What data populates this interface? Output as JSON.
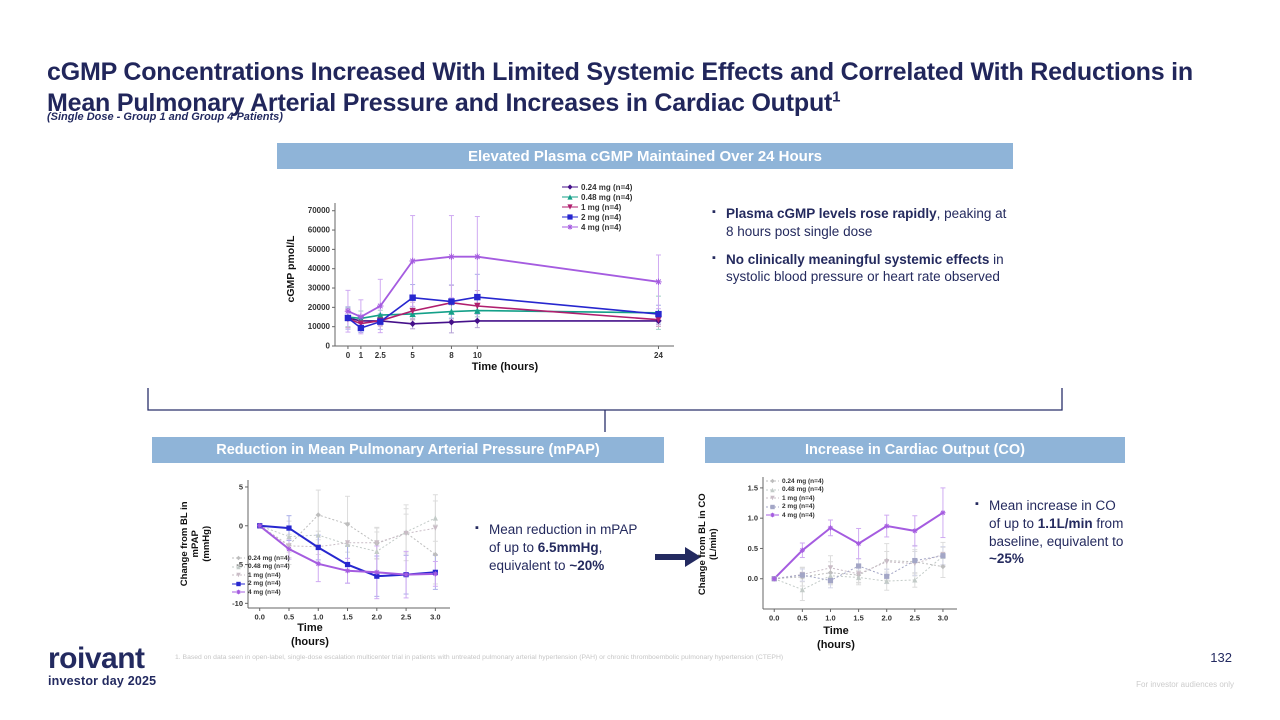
{
  "slide": {
    "title": "cGMP Concentrations Increased With Limited Systemic Effects and Correlated With Reductions in Mean Pulmonary Arterial Pressure and Increases in Cardiac Output",
    "title_superscript": "1",
    "subtitle": "(Single Dose - Group 1 and Group 4 Patients)",
    "page_number": "132",
    "audience_note": "For investor audiences only",
    "footnote": "1. Based on data seen in open-label, single-dose escalation multicenter trial in patients with untreated pulmonary arterial hypertension (PAH) or chronic thromboembolic pulmonary hypertension (CTEPH)",
    "logo": {
      "brand": "roivant",
      "event": "investor day 2025"
    }
  },
  "colors": {
    "navy": "#232a60",
    "header_bar_blue": "#8fb4d8",
    "dose_024": "#45108a",
    "dose_048": "#14a089",
    "dose_1": "#b01e6e",
    "dose_2": "#2727cf",
    "dose_4": "#a55ce0",
    "muted_gray": "#bdbdbd"
  },
  "sections": {
    "cgmp": {
      "header": "Elevated Plasma cGMP Maintained Over 24 Hours",
      "bullets": [
        {
          "parts": [
            {
              "t": "Plasma cGMP levels rose rapidly",
              "b": true
            },
            {
              "t": ", peaking at 8 hours post single dose",
              "b": false
            }
          ]
        },
        {
          "parts": [
            {
              "t": "No clinically meaningful systemic effects",
              "b": true
            },
            {
              "t": " in systolic blood pressure or heart rate observed",
              "b": false
            }
          ]
        }
      ]
    },
    "mpap": {
      "header": "Reduction in Mean Pulmonary Arterial Pressure (mPAP)",
      "bullets": [
        {
          "parts": [
            {
              "t": "Mean reduction in mPAP of up to ",
              "b": false
            },
            {
              "t": "6.5mmHg",
              "b": true
            },
            {
              "t": ", equivalent to ",
              "b": false
            },
            {
              "t": "~20%",
              "b": true
            }
          ]
        }
      ]
    },
    "co": {
      "header": "Increase in Cardiac Output (CO)",
      "bullets": [
        {
          "parts": [
            {
              "t": "Mean increase in CO of up to ",
              "b": false
            },
            {
              "t": "1.1L/min",
              "b": true
            },
            {
              "t": " from baseline, equivalent to ",
              "b": false
            },
            {
              "t": "~25%",
              "b": true
            }
          ]
        }
      ]
    }
  },
  "chart_data": [
    {
      "id": "cgmp",
      "type": "line",
      "title": "Elevated Plasma cGMP Maintained Over 24 Hours",
      "xlabel": "Time (hours)",
      "ylabel": "cGMP pmol/L",
      "x": [
        0,
        1,
        2.5,
        5,
        8,
        10,
        24
      ],
      "xlim": [
        -1,
        25.2
      ],
      "ylim": [
        0,
        74000
      ],
      "xticks": [
        0,
        1,
        2.5,
        5,
        8,
        10,
        24
      ],
      "xticklabels": [
        "0",
        "1",
        "2.5",
        "5",
        "8",
        "10",
        "24"
      ],
      "yticks": [
        0,
        10000,
        20000,
        30000,
        40000,
        50000,
        60000,
        70000
      ],
      "yticklabels": [
        "0",
        "10000",
        "20000",
        "30000",
        "40000",
        "50000",
        "60000",
        "70000"
      ],
      "grid": false,
      "legend_position": "above-plot-right",
      "series": [
        {
          "name": "0.24 mg (n=4)",
          "color": "#45108a",
          "ec": "#b6a3d6",
          "marker": "diamond",
          "width": 1.6,
          "values": [
            14500,
            13000,
            13000,
            11500,
            12300,
            13000,
            13000
          ],
          "err": [
            5000,
            2500,
            2200,
            2600,
            5500,
            3500,
            2000
          ]
        },
        {
          "name": "0.48 mg (n=4)",
          "color": "#14a089",
          "ec": "#9fd0c5",
          "marker": "triangle",
          "width": 1.6,
          "values": [
            15000,
            14300,
            16000,
            16600,
            17800,
            18300,
            17200
          ],
          "err": [
            5000,
            3800,
            2500,
            3000,
            3500,
            3200,
            8600
          ]
        },
        {
          "name": "1 mg (n=4)",
          "color": "#b01e6e",
          "ec": "#d4a9c6",
          "marker": "tridown",
          "width": 1.6,
          "values": [
            14000,
            11600,
            13100,
            18100,
            22400,
            20700,
            13600
          ],
          "err": [
            4500,
            2800,
            2800,
            4600,
            9000,
            8000,
            3500
          ]
        },
        {
          "name": "2 mg (n=4)",
          "color": "#2727cf",
          "ec": "#a9aee8",
          "marker": "square",
          "width": 1.6,
          "values": [
            14500,
            9300,
            12600,
            25000,
            23000,
            25300,
            16500
          ],
          "err": [
            5800,
            2300,
            4000,
            6800,
            8600,
            11800,
            4600
          ]
        },
        {
          "name": "4 mg (n=4)",
          "color": "#a55ce0",
          "ec": "#cfaaf2",
          "marker": "star",
          "width": 1.8,
          "values": [
            18000,
            15100,
            20700,
            44000,
            46200,
            46200,
            33200
          ],
          "err": [
            10800,
            8800,
            13800,
            23500,
            21300,
            20800,
            13900
          ]
        }
      ]
    },
    {
      "id": "mpap",
      "type": "line",
      "title": "Reduction in Mean Pulmonary Arterial Pressure (mPAP)",
      "xlabel": "Time\n(hours)",
      "ylabel": "Change from BL in\nmPAP\n(mmHg)",
      "x": [
        0,
        0.5,
        1,
        1.5,
        2,
        2.5,
        3
      ],
      "xlim": [
        -0.2,
        3.25
      ],
      "ylim": [
        -10.6,
        5.9
      ],
      "xticks": [
        0,
        0.5,
        1,
        1.5,
        2,
        2.5,
        3
      ],
      "xticklabels": [
        "0.0",
        "0.5",
        "1.0",
        "1.5",
        "2.0",
        "2.5",
        "3.0"
      ],
      "yticks": [
        5,
        0,
        -5,
        -10
      ],
      "yticklabels": [
        "5",
        "0",
        "-5",
        "-10"
      ],
      "grid": false,
      "legend_position": "inside-bottom-left",
      "series": [
        {
          "name": "0.24 mg (n=4)",
          "color": "#bdbdbd",
          "ec": "#dcdcdc",
          "marker": "diamond",
          "width": 1,
          "dash": "2,2",
          "values": [
            0,
            -2.5,
            1.4,
            0.2,
            -2.3,
            -0.9,
            -3.7
          ],
          "err": [
            0.3,
            2.5,
            3.2,
            3.6,
            2.0,
            3.6,
            3.8
          ]
        },
        {
          "name": "0.48 mg (n=4)",
          "color": "#c3cbc8",
          "ec": "#dcdcdc",
          "marker": "triangle",
          "width": 1,
          "dash": "2,2",
          "values": [
            0,
            -1.4,
            -1.2,
            -2.4,
            -3.3,
            -0.8,
            1.0
          ],
          "err": [
            0.3,
            2.0,
            2.5,
            2.8,
            2.5,
            3.0,
            3.0
          ]
        },
        {
          "name": "1 mg (n=4)",
          "color": "#c9bcc6",
          "ec": "#dcdcdc",
          "marker": "tridown",
          "width": 1,
          "dash": "2,2",
          "values": [
            0,
            -2.6,
            -2.7,
            -2.2,
            -2.2,
            -1.0,
            -0.3
          ],
          "err": [
            0.3,
            1.5,
            2.0,
            2.5,
            2.0,
            2.5,
            3.5
          ]
        },
        {
          "name": "2 mg (n=4)",
          "color": "#2727cf",
          "ec": "#a9aee8",
          "marker": "square",
          "width": 2,
          "values": [
            0,
            -0.3,
            -2.8,
            -5.0,
            -6.5,
            -6.3,
            -6.0
          ],
          "err": [
            0.2,
            1.6,
            1.6,
            2.4,
            2.6,
            2.5,
            2.2
          ]
        },
        {
          "name": "4 mg (n=4)",
          "color": "#a55ce0",
          "ec": "#cfaaf2",
          "marker": "star",
          "width": 2,
          "values": [
            0,
            -3.0,
            -4.9,
            -5.8,
            -6.0,
            -6.3,
            -6.2
          ],
          "err": [
            0.2,
            1.3,
            2.3,
            1.6,
            3.4,
            3.0,
            1.6
          ]
        }
      ]
    },
    {
      "id": "co",
      "type": "line",
      "title": "Increase in Cardiac Output (CO)",
      "xlabel": "Time\n(hours)",
      "ylabel": "Change from BL in CO\n(L/min)",
      "x": [
        0,
        0.5,
        1,
        1.5,
        2,
        2.5,
        3
      ],
      "xlim": [
        -0.2,
        3.25
      ],
      "ylim": [
        -0.5,
        1.68
      ],
      "xticks": [
        0,
        0.5,
        1,
        1.5,
        2,
        2.5,
        3
      ],
      "xticklabels": [
        "0.0",
        "0.5",
        "1.0",
        "1.5",
        "2.0",
        "2.5",
        "3.0"
      ],
      "yticks": [
        1.5,
        1.0,
        0.5,
        0.0
      ],
      "yticklabels": [
        "1.5",
        "1.0",
        "0.5",
        "0.0"
      ],
      "grid": false,
      "legend_position": "inside-top-left",
      "series": [
        {
          "name": "0.24 mg (n=4)",
          "color": "#bdbdbd",
          "ec": "#dcdcdc",
          "marker": "diamond",
          "width": 1,
          "dash": "2,2",
          "values": [
            0,
            0.03,
            0.1,
            0.06,
            0.3,
            0.28,
            0.2
          ],
          "err": [
            0.02,
            0.15,
            0.18,
            0.12,
            0.15,
            0.2,
            0.18
          ]
        },
        {
          "name": "0.48 mg (n=4)",
          "color": "#c3cbc8",
          "ec": "#dcdcdc",
          "marker": "triangle",
          "width": 1,
          "dash": "2,2",
          "values": [
            0,
            -0.18,
            0.05,
            0.02,
            -0.04,
            -0.02,
            0.37
          ],
          "err": [
            0.02,
            0.18,
            0.15,
            0.12,
            0.15,
            0.12,
            0.15
          ]
        },
        {
          "name": "1 mg (n=4)",
          "color": "#c9bcc6",
          "ec": "#dcdcdc",
          "marker": "tridown",
          "width": 1,
          "dash": "2,2",
          "values": [
            0,
            0.07,
            0.18,
            0.08,
            0.28,
            0.25,
            0.4
          ],
          "err": [
            0.02,
            0.12,
            0.2,
            0.15,
            0.3,
            0.2,
            0.2
          ]
        },
        {
          "name": "2 mg (n=4)",
          "color": "#a3a6c6",
          "ec": "#d5d7e8",
          "marker": "square",
          "width": 1,
          "dash": "2,2",
          "values": [
            0,
            0.06,
            -0.03,
            0.21,
            0.04,
            0.3,
            0.38
          ],
          "err": [
            0.02,
            0.1,
            0.12,
            0.12,
            0.12,
            0.25,
            0.15
          ]
        },
        {
          "name": "4 mg (n=4)",
          "color": "#a55ce0",
          "ec": "#cfaaf2",
          "marker": "star",
          "width": 2,
          "values": [
            0,
            0.47,
            0.84,
            0.58,
            0.87,
            0.79,
            1.09
          ],
          "err": [
            0.03,
            0.12,
            0.13,
            0.25,
            0.18,
            0.25,
            0.41
          ]
        }
      ]
    }
  ]
}
